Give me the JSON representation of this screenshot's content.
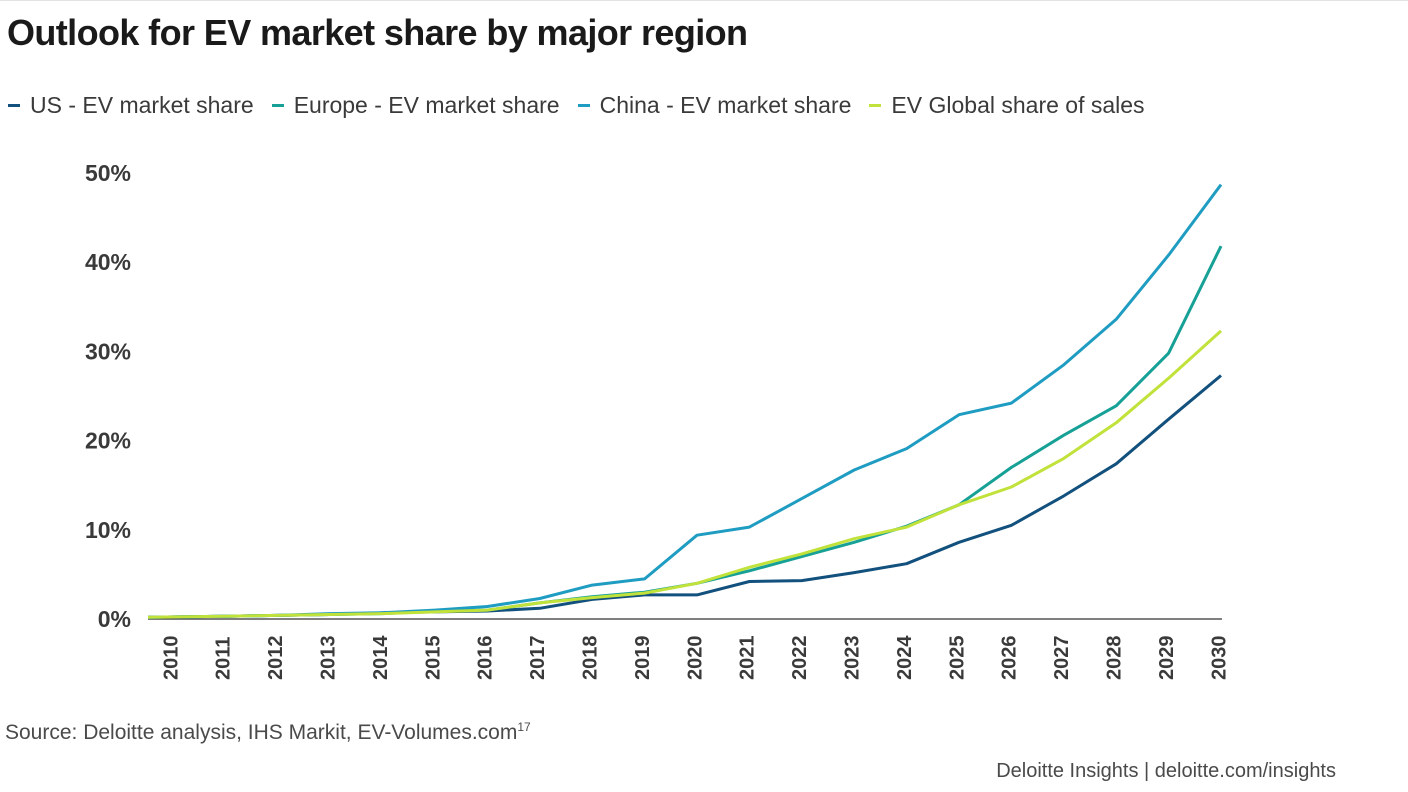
{
  "chart_data": {
    "type": "line",
    "title": "Outlook for EV market share by major region",
    "xlabel": "",
    "ylabel": "",
    "x": [
      "2010",
      "2011",
      "2012",
      "2013",
      "2014",
      "2015",
      "2016",
      "2017",
      "2018",
      "2019",
      "2020",
      "2021",
      "2022",
      "2023",
      "2024",
      "2025",
      "2026",
      "2027",
      "2028",
      "2029",
      "2030"
    ],
    "yticks": [
      "0%",
      "10%",
      "20%",
      "30%",
      "40%",
      "50%"
    ],
    "ylim": [
      0,
      50
    ],
    "grid": false,
    "legend_position": "top",
    "series": [
      {
        "name": "US - EV market share",
        "color": "#12507d",
        "values": [
          0.2,
          0.3,
          0.4,
          0.5,
          0.7,
          0.8,
          0.9,
          1.2,
          2.2,
          2.7,
          2.7,
          4.2,
          4.3,
          5.2,
          6.2,
          8.6,
          10.5,
          13.8,
          17.4,
          22.4,
          27.3
        ]
      },
      {
        "name": "Europe - EV market share",
        "color": "#16a096",
        "values": [
          0.2,
          0.3,
          0.4,
          0.5,
          0.6,
          0.9,
          1.0,
          1.8,
          2.5,
          3.0,
          4.0,
          5.4,
          7.0,
          8.6,
          10.4,
          12.8,
          17.0,
          20.6,
          23.9,
          29.8,
          41.8
        ]
      },
      {
        "name": "China - EV market share",
        "color": "#1f9cc1",
        "values": [
          0.2,
          0.3,
          0.4,
          0.6,
          0.7,
          1.0,
          1.4,
          2.3,
          3.8,
          4.5,
          9.4,
          10.3,
          13.5,
          16.7,
          19.1,
          22.9,
          24.2,
          28.5,
          33.6,
          40.8,
          48.7
        ]
      },
      {
        "name": "EV Global share of sales",
        "color": "#c1e23a",
        "values": [
          0.2,
          0.3,
          0.4,
          0.5,
          0.6,
          0.8,
          1.0,
          1.8,
          2.4,
          2.9,
          4.0,
          5.8,
          7.3,
          9.0,
          10.3,
          12.8,
          14.8,
          18.0,
          22.0,
          27.0,
          32.3
        ]
      }
    ],
    "source_prefix": "Source: Deloitte analysis, IHS Markit, EV-Volumes.com",
    "source_sup": "17",
    "footer": "Deloitte Insights | deloitte.com/insights"
  }
}
